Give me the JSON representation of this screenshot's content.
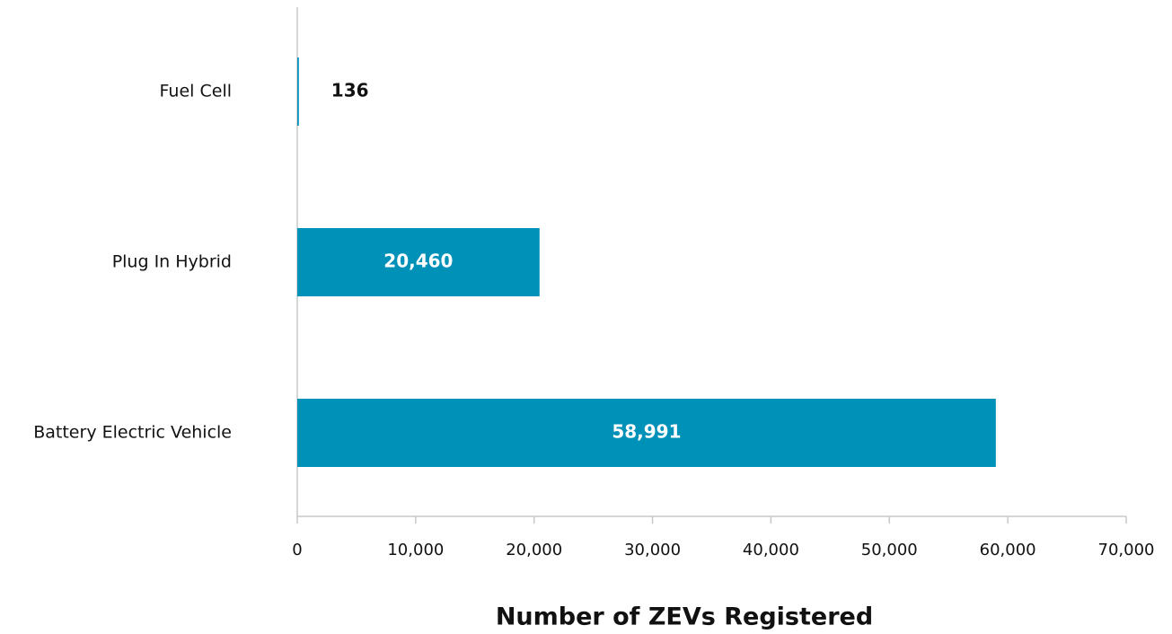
{
  "chart_data": {
    "type": "barh",
    "categories": [
      "Fuel Cell",
      "Plug In Hybrid",
      "Battery Electric Vehicle"
    ],
    "values": [
      136,
      20460,
      58991
    ],
    "value_labels": [
      "136",
      "20,460",
      "58,991"
    ],
    "color": "#0091b9",
    "xlabel": "Number of ZEVs Registered",
    "xlim": [
      0,
      70000
    ],
    "xticks": [
      0,
      {
        "value": 10000,
        "label": "10,000"
      },
      {
        "value": 20000,
        "label": "20,000"
      },
      {
        "value": 30000,
        "label": "30,000"
      },
      {
        "value": 40000,
        "label": "40,000"
      },
      {
        "value": 50000,
        "label": "50,000"
      },
      {
        "value": 60000,
        "label": "60,000"
      },
      {
        "value": 70000,
        "label": "70,000"
      }
    ],
    "grid": false
  }
}
